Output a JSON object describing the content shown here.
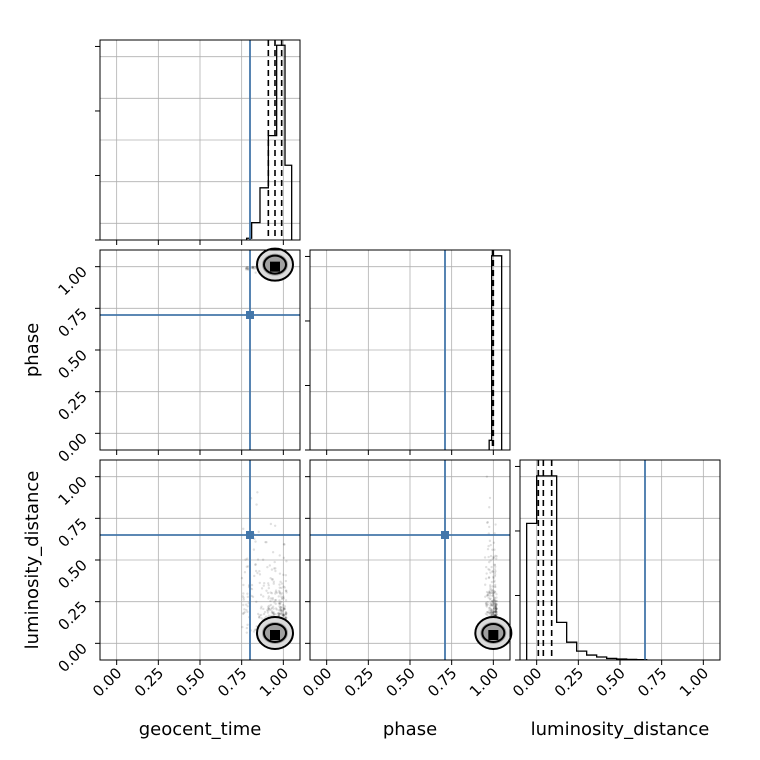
{
  "chart_data": {
    "type": "corner",
    "parameters": [
      "geocent_time",
      "phase",
      "luminosity_distance"
    ],
    "ticks": [
      "0.00",
      "0.25",
      "0.50",
      "0.75",
      "1.00"
    ],
    "tick_values": [
      0,
      0.25,
      0.5,
      0.75,
      1.0
    ],
    "range": [
      -0.1,
      1.1
    ],
    "truth": {
      "geocent_time": 0.8,
      "phase": 0.71,
      "luminosity_distance": 0.65
    },
    "truth_color": "#4477aa",
    "grid": true,
    "marginals": {
      "geocent_time": {
        "bin_edges": [
          0.78,
          0.81,
          0.86,
          0.91,
          0.96,
          1.01,
          1.05
        ],
        "counts": [
          0.1,
          1.0,
          3.0,
          6.0,
          11.2,
          4.3
        ],
        "max": 11.5,
        "quantiles": [
          0.91,
          0.95,
          0.99
        ]
      },
      "phase": {
        "bin_edges": [
          0.975,
          0.99,
          1.0,
          1.05
        ],
        "counts": [
          0.05,
          1.0,
          1.0
        ],
        "max": 1.03,
        "quantiles": [
          0.995,
          1.0
        ]
      },
      "luminosity_distance": {
        "bin_edges": [
          -0.06,
          0.0,
          0.06,
          0.12,
          0.18,
          0.24,
          0.3,
          0.36,
          0.42,
          0.48,
          0.54,
          0.6,
          0.66
        ],
        "counts": [
          6.9,
          9.3,
          9.3,
          1.9,
          0.9,
          0.45,
          0.25,
          0.15,
          0.08,
          0.05,
          0.03,
          0.02
        ],
        "max": 10.1,
        "quantiles": [
          0.01,
          0.04,
          0.09
        ]
      }
    },
    "samples": {
      "geocent_time_vs_phase": {
        "center": [
          0.95,
          1.0
        ],
        "x_range": [
          0.75,
          1.02
        ],
        "y_range": [
          0.85,
          1.02
        ]
      },
      "geocent_time_vs_luminosity_distance": {
        "center": [
          0.95,
          0.05
        ],
        "x_range": [
          0.75,
          1.02
        ],
        "y_range": [
          -0.01,
          1.0
        ]
      },
      "phase_vs_luminosity_distance": {
        "center": [
          1.0,
          0.05
        ],
        "x_range": [
          0.95,
          1.02
        ],
        "y_range": [
          -0.01,
          1.0
        ]
      }
    }
  }
}
